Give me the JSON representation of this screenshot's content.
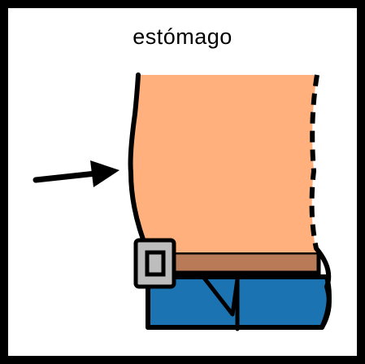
{
  "label": "estómago",
  "illustration": {
    "subject": "torso-with-arrow-pointing-to-stomach",
    "colors": {
      "skin": "#FFB07C",
      "belt": "#B87A57",
      "buckle": "#BDBDBD",
      "jeans": "#1B74B1",
      "outline": "#000000",
      "background": "#FFFFFF",
      "frame": "#000000"
    }
  }
}
